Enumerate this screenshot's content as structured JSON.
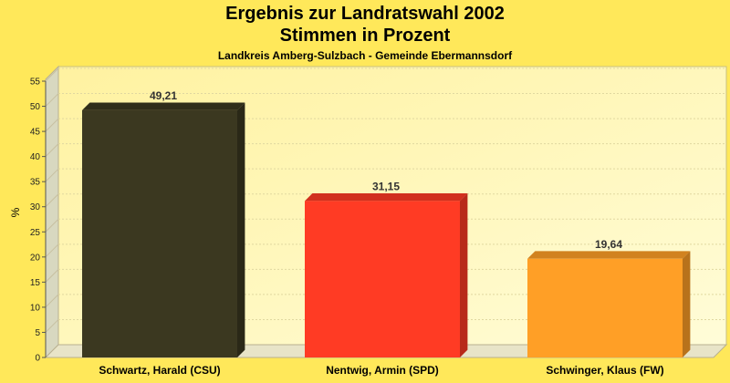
{
  "chart_data": {
    "type": "bar",
    "title": "Ergebnis zur Landratswahl 2002",
    "subtitle": "Stimmen in Prozent",
    "caption": "Landkreis Amberg-Sulzbach - Gemeinde Ebermannsdorf",
    "xlabel": "",
    "ylabel": "%",
    "ylim": [
      0,
      55
    ],
    "yticks": [
      0,
      5,
      10,
      15,
      20,
      25,
      30,
      35,
      40,
      45,
      50,
      55
    ],
    "grid": true,
    "categories": [
      "Schwartz, Harald (CSU)",
      "Nentwig, Armin (SPD)",
      "Schwinger, Klaus (FW)"
    ],
    "values": [
      49.21,
      31.15,
      19.64
    ],
    "value_labels": [
      "49,21",
      "31,15",
      "19,64"
    ],
    "colors": [
      "#3b3820",
      "#ff3b24",
      "#ff9f26"
    ]
  }
}
